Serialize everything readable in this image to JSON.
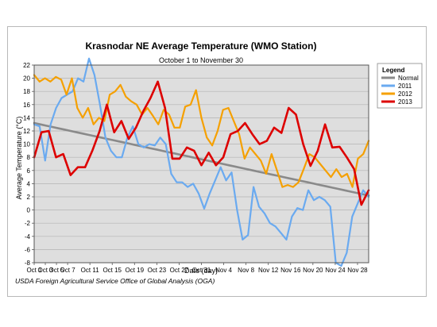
{
  "chart_data": {
    "type": "line",
    "title": "Krasnodar NE Average Temperature (WMO Station)",
    "subtitle": "October 1 to November 30",
    "xlabel": "Date (day)",
    "ylabel": "Average Temperature (°C)",
    "ylim": [
      -8,
      22
    ],
    "y_ticks": [
      "-8",
      "-6",
      "-4",
      "-2",
      "0",
      "2",
      "4",
      "6",
      "8",
      "10",
      "12",
      "14",
      "16",
      "18",
      "20",
      "22"
    ],
    "x_ticks": [
      "Oct 1",
      "Oct 3",
      "Oct 5",
      "Oct 7",
      "Oct 11",
      "Oct 15",
      "Oct 19",
      "Oct 23",
      "Oct 27",
      "Oct 31",
      "Nov 4",
      "Nov 8",
      "Nov 12",
      "Nov 16",
      "Nov 20",
      "Nov 24",
      "Nov 28"
    ],
    "grid": true,
    "legend_title": "Legend",
    "legend_position": "right",
    "source": "USDA Foreign Agricultural Service Office of Global Analysis (OGA)",
    "series": [
      {
        "name": "Normal",
        "color": "#8a8a8a",
        "values": [
          13.2,
          13.0,
          12.8,
          12.6,
          12.4,
          12.2,
          12.0,
          11.8,
          11.6,
          11.4,
          11.2,
          11.0,
          10.8,
          10.6,
          10.4,
          10.2,
          10.0,
          9.8,
          9.6,
          9.4,
          9.2,
          9.0,
          8.8,
          8.6,
          8.4,
          8.2,
          8.0,
          7.8,
          7.6,
          7.4,
          7.2,
          7.0,
          6.8,
          6.6,
          6.4,
          6.2,
          6.0,
          5.8,
          5.6,
          5.4,
          5.2,
          5.0,
          4.8,
          4.6,
          4.4,
          4.2,
          4.0,
          3.8,
          3.6,
          3.4,
          3.2,
          3.0,
          2.8,
          2.6,
          2.4,
          2.2
        ]
      },
      {
        "name": "2011",
        "color": "#6aaaf0",
        "values": [
          13,
          12.7,
          7.5,
          13,
          15.5,
          17,
          17.5,
          18,
          20,
          19.5,
          23,
          20.5,
          16,
          11,
          9,
          8,
          8,
          11,
          12.7,
          10,
          9.5,
          10,
          9.8,
          11,
          10,
          5.5,
          4.2,
          4.2,
          3.5,
          4,
          2.5,
          0.2,
          2.5,
          4.5,
          6.5,
          4.5,
          5.7,
          0,
          -4.5,
          -3.8,
          3.5,
          0.5,
          -0.5,
          -2,
          -2.5,
          -3.5,
          -4.5,
          -1,
          0.3,
          0,
          3,
          1.5,
          2,
          1.5,
          0.5,
          -8,
          -8.5,
          -6.5,
          -1,
          1,
          3,
          2
        ]
      },
      {
        "name": "2012",
        "color": "#f5a000",
        "values": [
          20.5,
          19.5,
          20,
          19.5,
          20.2,
          19.8,
          17.5,
          20,
          15.5,
          14,
          15.5,
          13,
          14,
          13.5,
          17.5,
          18,
          19,
          17.2,
          16.5,
          16,
          14.5,
          15.5,
          14.3,
          13,
          15.2,
          14.5,
          12.5,
          12.5,
          15.7,
          16,
          18.2,
          14,
          11,
          9.8,
          12,
          15.2,
          15.5,
          13.5,
          11.5,
          7.8,
          9.5,
          8.5,
          7.5,
          5.5,
          8.5,
          6,
          3.5,
          3.8,
          3.5,
          4.2,
          6.3,
          8.5,
          8,
          7,
          6,
          5,
          6.2,
          5,
          5.5,
          3.5,
          7.8,
          8.5,
          10.5
        ]
      },
      {
        "name": "2013",
        "color": "#dd0000",
        "values": [
          8,
          11.8,
          12,
          8,
          8.5,
          5.3,
          6.5,
          6.5,
          9,
          12,
          16,
          11.8,
          13.5,
          10.8,
          12.5,
          15,
          17,
          19.5,
          15.5,
          7.8,
          7.8,
          9.5,
          9,
          6.8,
          8.7,
          6.8,
          8,
          11.5,
          12,
          13.2,
          11.5,
          10,
          10.5,
          12.5,
          11.7,
          15.5,
          14.5,
          10,
          6.7,
          9,
          13,
          9.5,
          9.6,
          8,
          6.2,
          0.8,
          3
        ]
      }
    ]
  }
}
